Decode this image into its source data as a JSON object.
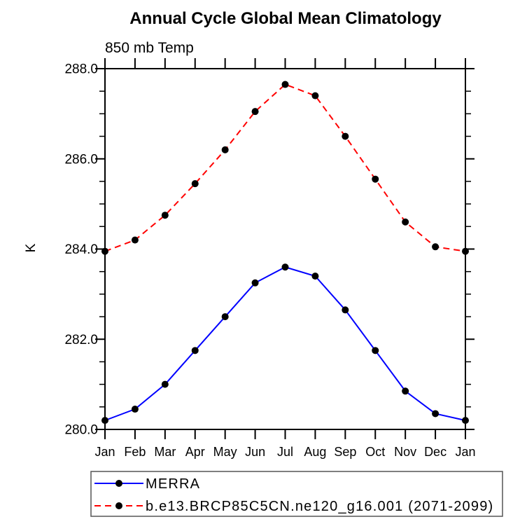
{
  "title": "Annual Cycle Global Mean Climatology",
  "subtitle": "850 mb Temp",
  "chart_data": {
    "type": "line",
    "title": "Annual Cycle Global Mean Climatology",
    "subtitle": "850 mb Temp",
    "xlabel": "",
    "ylabel": "K",
    "categories": [
      "Jan",
      "Feb",
      "Mar",
      "Apr",
      "May",
      "Jun",
      "Jul",
      "Aug",
      "Sep",
      "Oct",
      "Nov",
      "Dec",
      "Jan"
    ],
    "ylim": [
      280.0,
      288.0
    ],
    "ytick_major_interval": 2.0,
    "ytick_minor_interval": 0.5,
    "ytick_labels": [
      "280.0",
      "282.0",
      "284.0",
      "286.0",
      "288.0"
    ],
    "grid": false,
    "legend_position": "bottom",
    "marker": "filled-circle",
    "marker_color": "#000000",
    "axis_color": "#000000",
    "legend_border_color": "#555555",
    "series": [
      {
        "name": "MERRA",
        "color": "#0000ff",
        "style": "solid",
        "values": [
          280.2,
          280.45,
          281.0,
          281.75,
          282.5,
          283.25,
          283.6,
          283.4,
          282.65,
          281.75,
          280.85,
          280.35,
          280.2
        ]
      },
      {
        "name": "b.e13.BRCP85C5CN.ne120_g16.001 (2071-2099)",
        "color": "#ff0000",
        "style": "dashed",
        "values": [
          283.95,
          284.2,
          284.75,
          285.45,
          286.2,
          287.05,
          287.65,
          287.4,
          286.5,
          285.55,
          284.6,
          284.05,
          283.95
        ]
      }
    ]
  }
}
